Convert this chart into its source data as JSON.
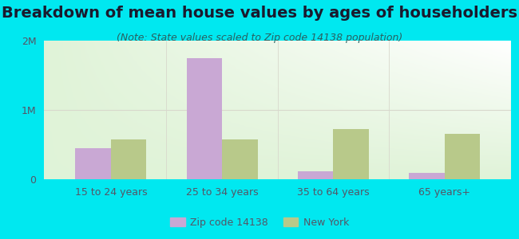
{
  "title": "Breakdown of mean house values by ages of householders",
  "subtitle": "(Note: State values scaled to Zip code 14138 population)",
  "categories": [
    "15 to 24 years",
    "25 to 34 years",
    "35 to 64 years",
    "65 years+"
  ],
  "zip_values": [
    450000,
    1750000,
    120000,
    95000
  ],
  "ny_values": [
    570000,
    570000,
    720000,
    650000
  ],
  "zip_color": "#c9a8d4",
  "ny_color": "#b8c98a",
  "ylim": [
    0,
    2000000
  ],
  "ytick_labels": [
    "0",
    "1M",
    "2M"
  ],
  "outer_background": "#00e8f0",
  "grid_color": "#d8d8cc",
  "title_fontsize": 14,
  "subtitle_fontsize": 9,
  "title_color": "#1a1a2e",
  "subtitle_color": "#2a6060",
  "tick_color": "#555566",
  "legend_labels": [
    "Zip code 14138",
    "New York"
  ],
  "bar_width": 0.32
}
